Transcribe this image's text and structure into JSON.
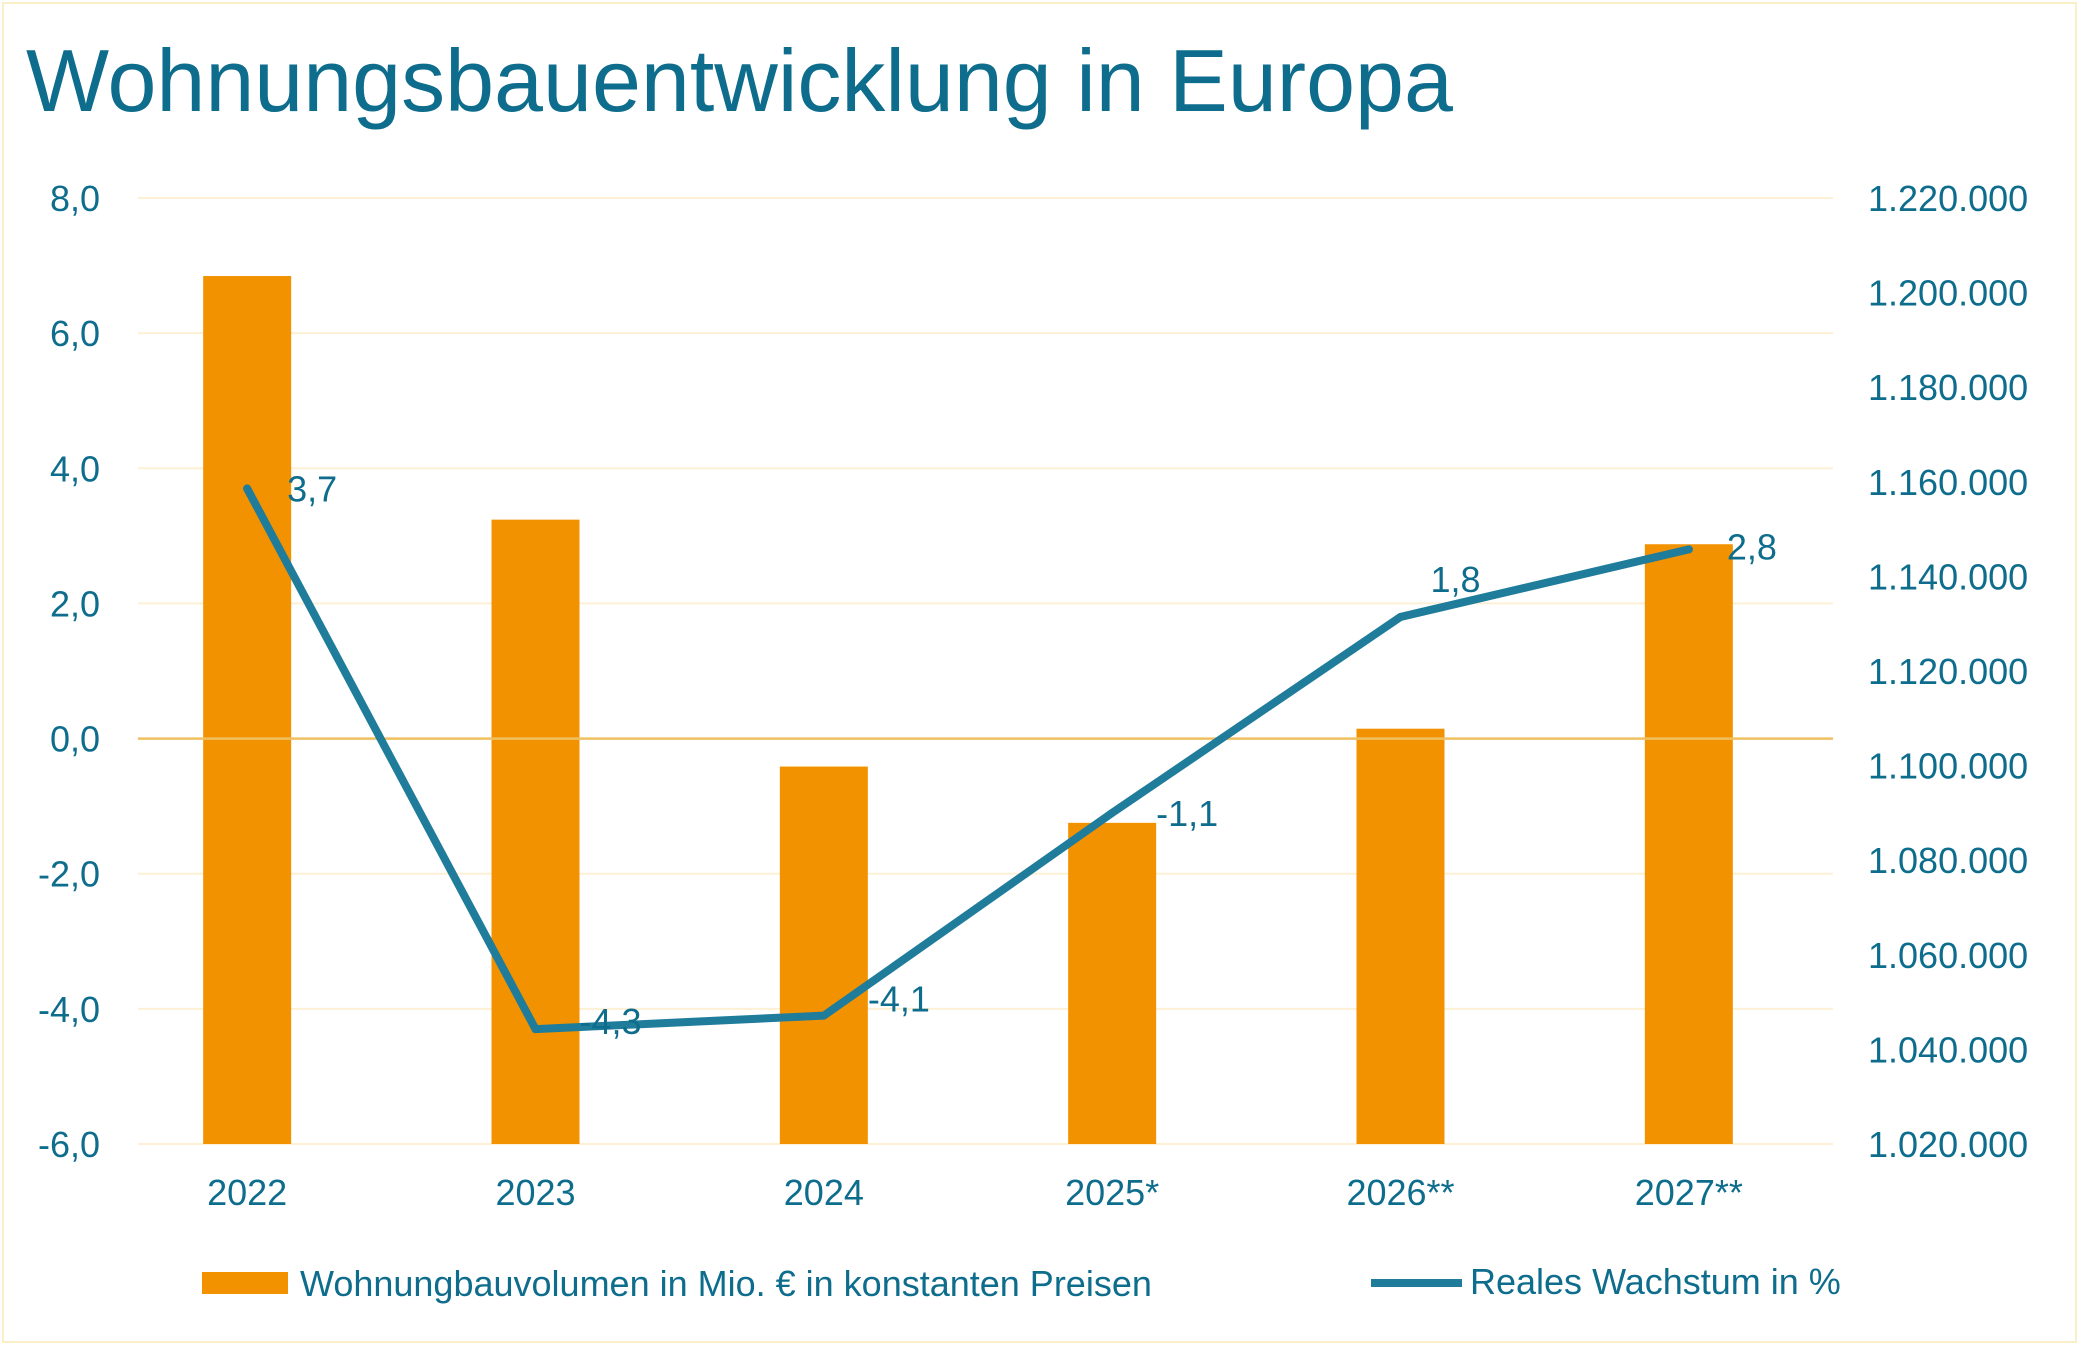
{
  "chart_data": {
    "type": "bar+line",
    "title": "Wohnungsbauentwicklung in Europa",
    "categories": [
      "2022",
      "2023",
      "2024",
      "2025*",
      "2026**",
      "2027**"
    ],
    "series": [
      {
        "name": "Wohnungbauvolumen in Mio. € in konstanten Preisen",
        "type": "bar",
        "axis": "right",
        "color": "#f39200",
        "values": [
          1203500,
          1152000,
          1099800,
          1087900,
          1107800,
          1146800
        ]
      },
      {
        "name": "Reales Wachstum in %",
        "type": "line",
        "axis": "left",
        "color": "#1f7c9b",
        "values": [
          3.7,
          -4.3,
          -4.1,
          -1.1,
          1.8,
          2.8
        ],
        "data_labels": [
          "3,7",
          "-4,3",
          "-4,1",
          "-1,1",
          "1,8",
          "2,8"
        ]
      }
    ],
    "y_left": {
      "ylim": [
        -6,
        8
      ],
      "ticks": [
        "8,0",
        "6,0",
        "4,0",
        "2,0",
        "0,0",
        "-2,0",
        "-4,0",
        "-6,0"
      ]
    },
    "y_right": {
      "ylim": [
        1020000,
        1220000
      ],
      "ticks": [
        "1.220.000",
        "1.200.000",
        "1.180.000",
        "1.160.000",
        "1.140.000",
        "1.120.000",
        "1.100.000",
        "1.080.000",
        "1.060.000",
        "1.040.000",
        "1.020.000"
      ]
    },
    "grid": true,
    "legend_position": "bottom",
    "colors": {
      "text": "#0e6d8c",
      "grid": "#fdf0d5",
      "zero_line": "#f0c060",
      "frame": "#fbefc7"
    }
  }
}
